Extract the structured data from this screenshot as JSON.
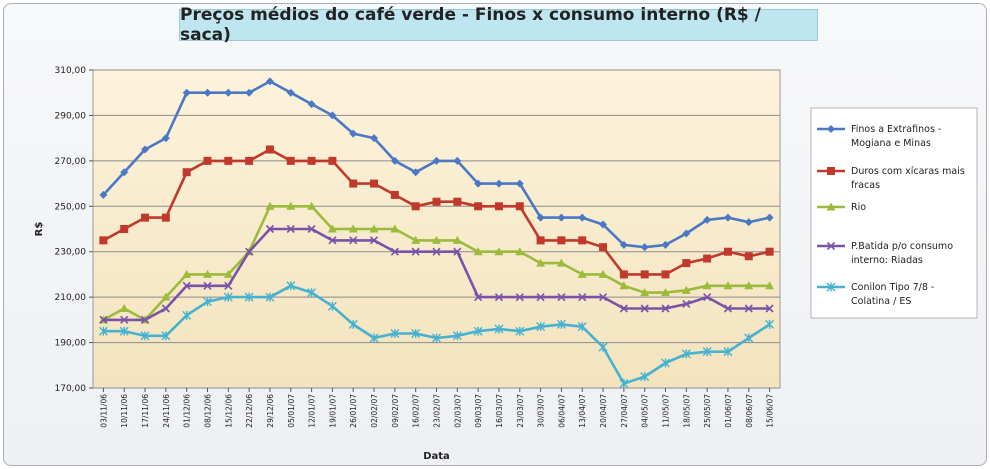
{
  "chart_data": {
    "type": "line",
    "title": "Preços médios do café verde - Finos x consumo interno (R$ / saca)",
    "xlabel": "Data",
    "ylabel": "R$",
    "ylim": [
      170,
      310
    ],
    "yticks": [
      "310,00",
      "290,00",
      "270,00",
      "250,00",
      "230,00",
      "210,00",
      "190,00",
      "170,00"
    ],
    "grid": "horizontal",
    "legend": "right",
    "x": [
      "03/11/06",
      "10/11/06",
      "17/11/06",
      "24/11/06",
      "01/12/06",
      "08/12/06",
      "15/12/06",
      "22/12/06",
      "29/12/06",
      "05/01/07",
      "12/01/07",
      "19/01/07",
      "26/01/07",
      "02/02/07",
      "09/02/07",
      "16/02/07",
      "23/02/07",
      "02/03/07",
      "09/03/07",
      "16/03/07",
      "23/03/07",
      "30/03/07",
      "06/04/07",
      "13/04/07",
      "20/04/07",
      "27/04/07",
      "04/05/07",
      "11/05/07",
      "18/05/07",
      "25/05/07",
      "01/06/07",
      "08/06/07",
      "15/06/07"
    ],
    "series": [
      {
        "name": "Finos a Extrafinos - Mogiana e Minas",
        "color": "#4a78c4",
        "marker": "diamond",
        "values": [
          255,
          265,
          275,
          280,
          300,
          300,
          300,
          300,
          305,
          300,
          295,
          290,
          282,
          280,
          270,
          265,
          270,
          270,
          260,
          260,
          260,
          245,
          245,
          245,
          242,
          233,
          232,
          233,
          238,
          244,
          245,
          243,
          245
        ]
      },
      {
        "name": "Duros com xícaras mais fracas",
        "color": "#c0392b",
        "marker": "square",
        "values": [
          235,
          240,
          245,
          245,
          265,
          270,
          270,
          270,
          275,
          270,
          270,
          270,
          260,
          260,
          255,
          250,
          252,
          252,
          250,
          250,
          250,
          235,
          235,
          235,
          232,
          220,
          220,
          220,
          225,
          227,
          230,
          228,
          230
        ]
      },
      {
        "name": "Rio",
        "color": "#9bbb3b",
        "marker": "triangle",
        "values": [
          200,
          205,
          200,
          210,
          220,
          220,
          220,
          230,
          250,
          250,
          250,
          240,
          240,
          240,
          240,
          235,
          235,
          235,
          230,
          230,
          230,
          225,
          225,
          220,
          220,
          215,
          212,
          212,
          213,
          215,
          215,
          215,
          215
        ]
      },
      {
        "name": "P.Batida p/o consumo interno: Riadas",
        "color": "#7a52a8",
        "marker": "x",
        "values": [
          200,
          200,
          200,
          205,
          215,
          215,
          215,
          230,
          240,
          240,
          240,
          235,
          235,
          235,
          230,
          230,
          230,
          230,
          210,
          210,
          210,
          210,
          210,
          210,
          210,
          205,
          205,
          205,
          207,
          210,
          205,
          205,
          205
        ]
      },
      {
        "name": "Conilon Tipo 7/8 - Colatina / ES",
        "color": "#46b2cf",
        "marker": "star",
        "values": [
          195,
          195,
          193,
          193,
          202,
          208,
          210,
          210,
          210,
          215,
          212,
          206,
          198,
          192,
          194,
          194,
          192,
          193,
          195,
          196,
          195,
          197,
          198,
          197,
          188,
          172,
          175,
          181,
          185,
          186,
          186,
          192,
          198
        ]
      }
    ]
  },
  "legend_labels": [
    [
      "Finos a Extrafinos -",
      "Mogiana e Minas"
    ],
    [
      "Duros com xícaras mais",
      "fracas"
    ],
    [
      "Rio"
    ],
    [
      "P.Batida p/o consumo",
      "interno: Riadas"
    ],
    [
      "Conilon Tipo 7/8 -",
      "Colatina / ES"
    ]
  ]
}
